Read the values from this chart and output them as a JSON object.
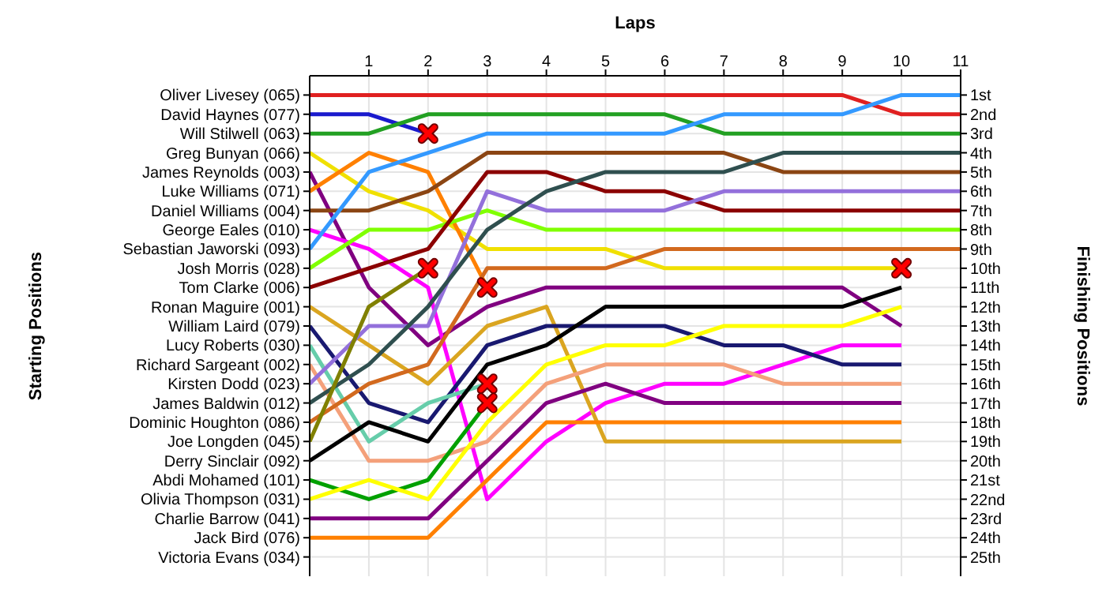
{
  "chart_data": {
    "type": "line",
    "xlabel": "Laps",
    "ylabel": "Finishing Positions",
    "grid": true,
    "legend": false,
    "marker": "none",
    "x": [
      0,
      1,
      2,
      3,
      4,
      5,
      6,
      7,
      8,
      9,
      10,
      11
    ],
    "xlim": [
      0,
      11
    ],
    "xticks": [
      1,
      2,
      3,
      4,
      5,
      6,
      7,
      8,
      9,
      10,
      11
    ],
    "ylim": [
      26,
      0
    ],
    "yticks": [
      {
        "value": 1,
        "label": "1st"
      },
      {
        "value": 2,
        "label": "2nd"
      },
      {
        "value": 3,
        "label": "3rd"
      },
      {
        "value": 4,
        "label": "4th"
      },
      {
        "value": 5,
        "label": "5th"
      },
      {
        "value": 6,
        "label": "6th"
      },
      {
        "value": 7,
        "label": "7th"
      },
      {
        "value": 8,
        "label": "8th"
      },
      {
        "value": 9,
        "label": "9th"
      },
      {
        "value": 10,
        "label": "10th"
      },
      {
        "value": 11,
        "label": "11th"
      },
      {
        "value": 12,
        "label": "12th"
      },
      {
        "value": 13,
        "label": "13th"
      },
      {
        "value": 14,
        "label": "14th"
      },
      {
        "value": 15,
        "label": "15th"
      },
      {
        "value": 16,
        "label": "16th"
      },
      {
        "value": 17,
        "label": "17th"
      },
      {
        "value": 18,
        "label": "18th"
      },
      {
        "value": 19,
        "label": "19th"
      },
      {
        "value": 20,
        "label": "20th"
      },
      {
        "value": 21,
        "label": "21st"
      },
      {
        "value": 22,
        "label": "22nd"
      },
      {
        "value": 23,
        "label": "23rd"
      },
      {
        "value": 24,
        "label": "24th"
      },
      {
        "value": 25,
        "label": "25th"
      }
    ],
    "annotations": [
      "Oliver Livesey (065)",
      "David Haynes (077)",
      "Will Stilwell (063)",
      "Greg Bunyan (066)",
      "James Reynolds (003)",
      "Luke Williams (071)",
      "Daniel Williams (004)",
      "George Eales (010)",
      "Sebastian Jaworski (093)",
      "Josh Morris (028)",
      "Tom Clarke (006)",
      "Ronan Maguire (001)",
      "William Laird (079)",
      "Lucy Roberts (030)",
      "Richard Sargeant (002)",
      "Kirsten Dodd (023)",
      "James Baldwin (012)",
      "Dominic Houghton (086)",
      "Joe Longden (045)",
      "Derry Sinclair (092)",
      "Abdi Mohamed (101)",
      "Olivia Thompson (031)",
      "Charlie Barrow (041)",
      "Jack Bird (076)",
      "Victoria Evans (034)",
      "Starting Positions"
    ],
    "series": [
      {
        "color": "#e02020",
        "values": [
          1,
          1,
          1,
          1,
          1,
          1,
          1,
          1,
          1,
          1,
          2,
          2
        ]
      },
      {
        "color": "#1a1acd",
        "values": [
          2,
          2,
          3,
          null,
          null,
          null,
          null,
          null,
          null,
          null,
          null,
          null
        ]
      },
      {
        "color": "#22a022",
        "values": [
          3,
          3,
          2,
          2,
          2,
          2,
          2,
          3,
          3,
          3,
          3,
          3
        ]
      },
      {
        "color": "#f0e000",
        "values": [
          4,
          6,
          7,
          9,
          9,
          9,
          10,
          10,
          10,
          10,
          10,
          null
        ]
      },
      {
        "color": "#800080",
        "values": [
          5,
          11,
          14,
          12,
          11,
          11,
          11,
          11,
          11,
          11,
          13,
          null
        ]
      },
      {
        "color": "#ff8000",
        "values": [
          6,
          4,
          5,
          11,
          null,
          null,
          null,
          null,
          null,
          null,
          null,
          null
        ]
      },
      {
        "color": "#8b4513",
        "values": [
          7,
          7,
          6,
          4,
          4,
          4,
          4,
          4,
          5,
          5,
          5,
          5
        ]
      },
      {
        "color": "#ff00ff",
        "values": [
          8,
          9,
          11,
          22,
          19,
          17,
          16,
          16,
          15,
          14,
          14,
          null
        ]
      },
      {
        "color": "#3399ff",
        "values": [
          9,
          5,
          4,
          3,
          3,
          3,
          3,
          2,
          2,
          2,
          1,
          1
        ]
      },
      {
        "color": "#80ff00",
        "values": [
          10,
          8,
          8,
          7,
          8,
          8,
          8,
          8,
          8,
          8,
          8,
          8
        ]
      },
      {
        "color": "#8b0000",
        "values": [
          11,
          10,
          9,
          5,
          5,
          6,
          6,
          7,
          7,
          7,
          7,
          7
        ]
      },
      {
        "color": "#daa520",
        "values": [
          12,
          14,
          16,
          13,
          12,
          19,
          19,
          19,
          19,
          19,
          19,
          null
        ]
      },
      {
        "color": "#191970",
        "values": [
          13,
          17,
          18,
          14,
          13,
          13,
          13,
          14,
          14,
          15,
          15,
          null
        ]
      },
      {
        "color": "#66cdaa",
        "values": [
          14,
          19,
          17,
          16,
          null,
          null,
          null,
          null,
          null,
          null,
          null,
          null
        ]
      },
      {
        "color": "#f4a07a",
        "values": [
          15,
          20,
          20,
          19,
          16,
          15,
          15,
          15,
          16,
          16,
          16,
          null
        ]
      },
      {
        "color": "#9370db",
        "values": [
          16,
          13,
          13,
          6,
          7,
          7,
          7,
          6,
          6,
          6,
          6,
          6
        ]
      },
      {
        "color": "#2f4f4f",
        "values": [
          17,
          15,
          12,
          8,
          6,
          5,
          5,
          5,
          4,
          4,
          4,
          4
        ]
      },
      {
        "color": "#d2691e",
        "values": [
          18,
          16,
          15,
          10,
          10,
          10,
          9,
          9,
          9,
          9,
          9,
          9
        ]
      },
      {
        "color": "#808000",
        "values": [
          19,
          12,
          10,
          null,
          null,
          null,
          null,
          null,
          null,
          null,
          null,
          null
        ]
      },
      {
        "color": "#000000",
        "values": [
          20,
          18,
          19,
          15,
          14,
          12,
          12,
          12,
          12,
          12,
          11,
          null
        ]
      },
      {
        "color": "#00a000",
        "values": [
          21,
          22,
          21,
          17,
          null,
          null,
          null,
          null,
          null,
          null,
          null,
          null
        ]
      },
      {
        "color": "#ffff00",
        "values": [
          22,
          21,
          22,
          18,
          15,
          14,
          14,
          13,
          13,
          13,
          12,
          null
        ]
      },
      {
        "color": "#800080",
        "values": [
          23,
          23,
          23,
          20,
          17,
          16,
          17,
          17,
          17,
          17,
          17,
          null
        ]
      },
      {
        "color": "#ff8000",
        "values": [
          24,
          24,
          24,
          21,
          18,
          18,
          18,
          18,
          18,
          18,
          18,
          null
        ]
      },
      {
        "type": "scatter",
        "color": "#ff0000",
        "marker": "cross",
        "x": [
          2,
          2,
          3,
          3,
          3,
          10
        ],
        "values": [
          3,
          10,
          11,
          16,
          17,
          10
        ]
      }
    ]
  }
}
